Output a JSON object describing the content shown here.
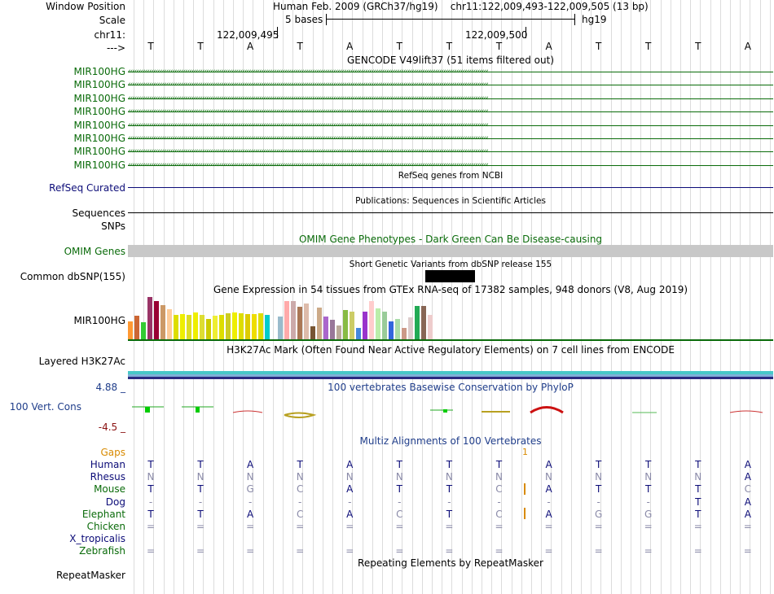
{
  "header": {
    "window_position_label": "Window Position",
    "window_position_value": "Human Feb. 2009 (GRCh37/hg19)    chr11:122,009,493-122,009,505 (13 bp)",
    "scale_label": "Scale",
    "scale_value": "5 bases",
    "scale_assembly": "hg19",
    "chrom_label": "chr11:",
    "pos1": "122,009,495",
    "pos2": "122,009,500",
    "strand_label": "--->"
  },
  "sequence": [
    "T",
    "T",
    "A",
    "T",
    "A",
    "T",
    "T",
    "T",
    "A",
    "T",
    "T",
    "T",
    "A"
  ],
  "gencode": {
    "title": "GENCODE V49lift37 (51 items filtered out)",
    "gene_labels": [
      "MIR100HG",
      "MIR100HG",
      "MIR100HG",
      "MIR100HG",
      "MIR100HG",
      "MIR100HG",
      "MIR100HG",
      "MIR100HG"
    ]
  },
  "refseq": {
    "title": "RefSeq genes from NCBI",
    "label": "RefSeq Curated"
  },
  "publications": {
    "title": "Publications: Sequences in Scientific Articles",
    "label": "Sequences"
  },
  "snps": {
    "label": "SNPs"
  },
  "omim": {
    "title": "OMIM Gene Phenotypes - Dark Green Can Be Disease-causing",
    "label": "OMIM Genes"
  },
  "dbsnp": {
    "title": "Short Genetic Variants from dbSNP release 155",
    "label": "Common dbSNP(155)"
  },
  "gtex": {
    "title": "Gene Expression in 54 tissues from GTEx RNA-seq of 17382 samples, 948 donors (V8, Aug 2019)",
    "label": "MIR100HG"
  },
  "h3k27ac": {
    "title": "H3K27Ac Mark (Often Found Near Active Regulatory Elements) on 7 cell lines from ENCODE",
    "label": "Layered H3K27Ac"
  },
  "phylop": {
    "title": "100 vertebrates Basewise Conservation by PhyloP",
    "label": "100 Vert. Cons",
    "max": "4.88 _",
    "min": "-4.5 _"
  },
  "multiz": {
    "title": "Multiz Alignments of 100 Vertebrates",
    "gaps_label": "Gaps",
    "gap_count": "1",
    "species": [
      {
        "name": "Human",
        "seq": [
          "T",
          "T",
          "A",
          "T",
          "A",
          "T",
          "T",
          "T",
          "A",
          "T",
          "T",
          "T",
          "A"
        ]
      },
      {
        "name": "Rhesus",
        "seq": [
          "N",
          "N",
          "N",
          "N",
          "N",
          "N",
          "N",
          "N",
          "N",
          "N",
          "N",
          "N",
          "A"
        ]
      },
      {
        "name": "Mouse",
        "seq": [
          "T",
          "T",
          "G",
          "C",
          "A",
          "T",
          "T",
          "C",
          "A",
          "T",
          "T",
          "T",
          "C"
        ]
      },
      {
        "name": "Dog",
        "seq": [
          "-",
          "-",
          "-",
          "-",
          "-",
          "-",
          "-",
          "-",
          "-",
          "-",
          "-",
          "T",
          "A"
        ]
      },
      {
        "name": "Elephant",
        "seq": [
          "T",
          "T",
          "A",
          "C",
          "A",
          "C",
          "T",
          "C",
          "A",
          "G",
          "G",
          "T",
          "A"
        ]
      },
      {
        "name": "Chicken",
        "seq": [
          "=",
          "=",
          "=",
          "=",
          "=",
          "=",
          "=",
          "=",
          "=",
          "=",
          "=",
          "=",
          "="
        ]
      },
      {
        "name": "X_tropicalis",
        "seq": [
          "",
          "",
          "",
          "",
          "",
          "",
          "",
          "",
          "",
          "",
          "",
          "",
          ""
        ]
      },
      {
        "name": "Zebrafish",
        "seq": [
          "=",
          "=",
          "=",
          "=",
          "=",
          "=",
          "=",
          "=",
          "=",
          "=",
          "=",
          "=",
          "="
        ]
      }
    ]
  },
  "repeatmasker": {
    "title": "Repeating Elements by RepeatMasker",
    "label": "RepeatMasker"
  },
  "colors": {
    "gencode_green": "#0a6b0a",
    "refseq_navy": "#0c0c78",
    "omim_gray": "#c8c8c8",
    "phylop_blue": "#1f3d8a",
    "phylop_red": "#8a1010",
    "gaps_orange": "#d88a00"
  }
}
